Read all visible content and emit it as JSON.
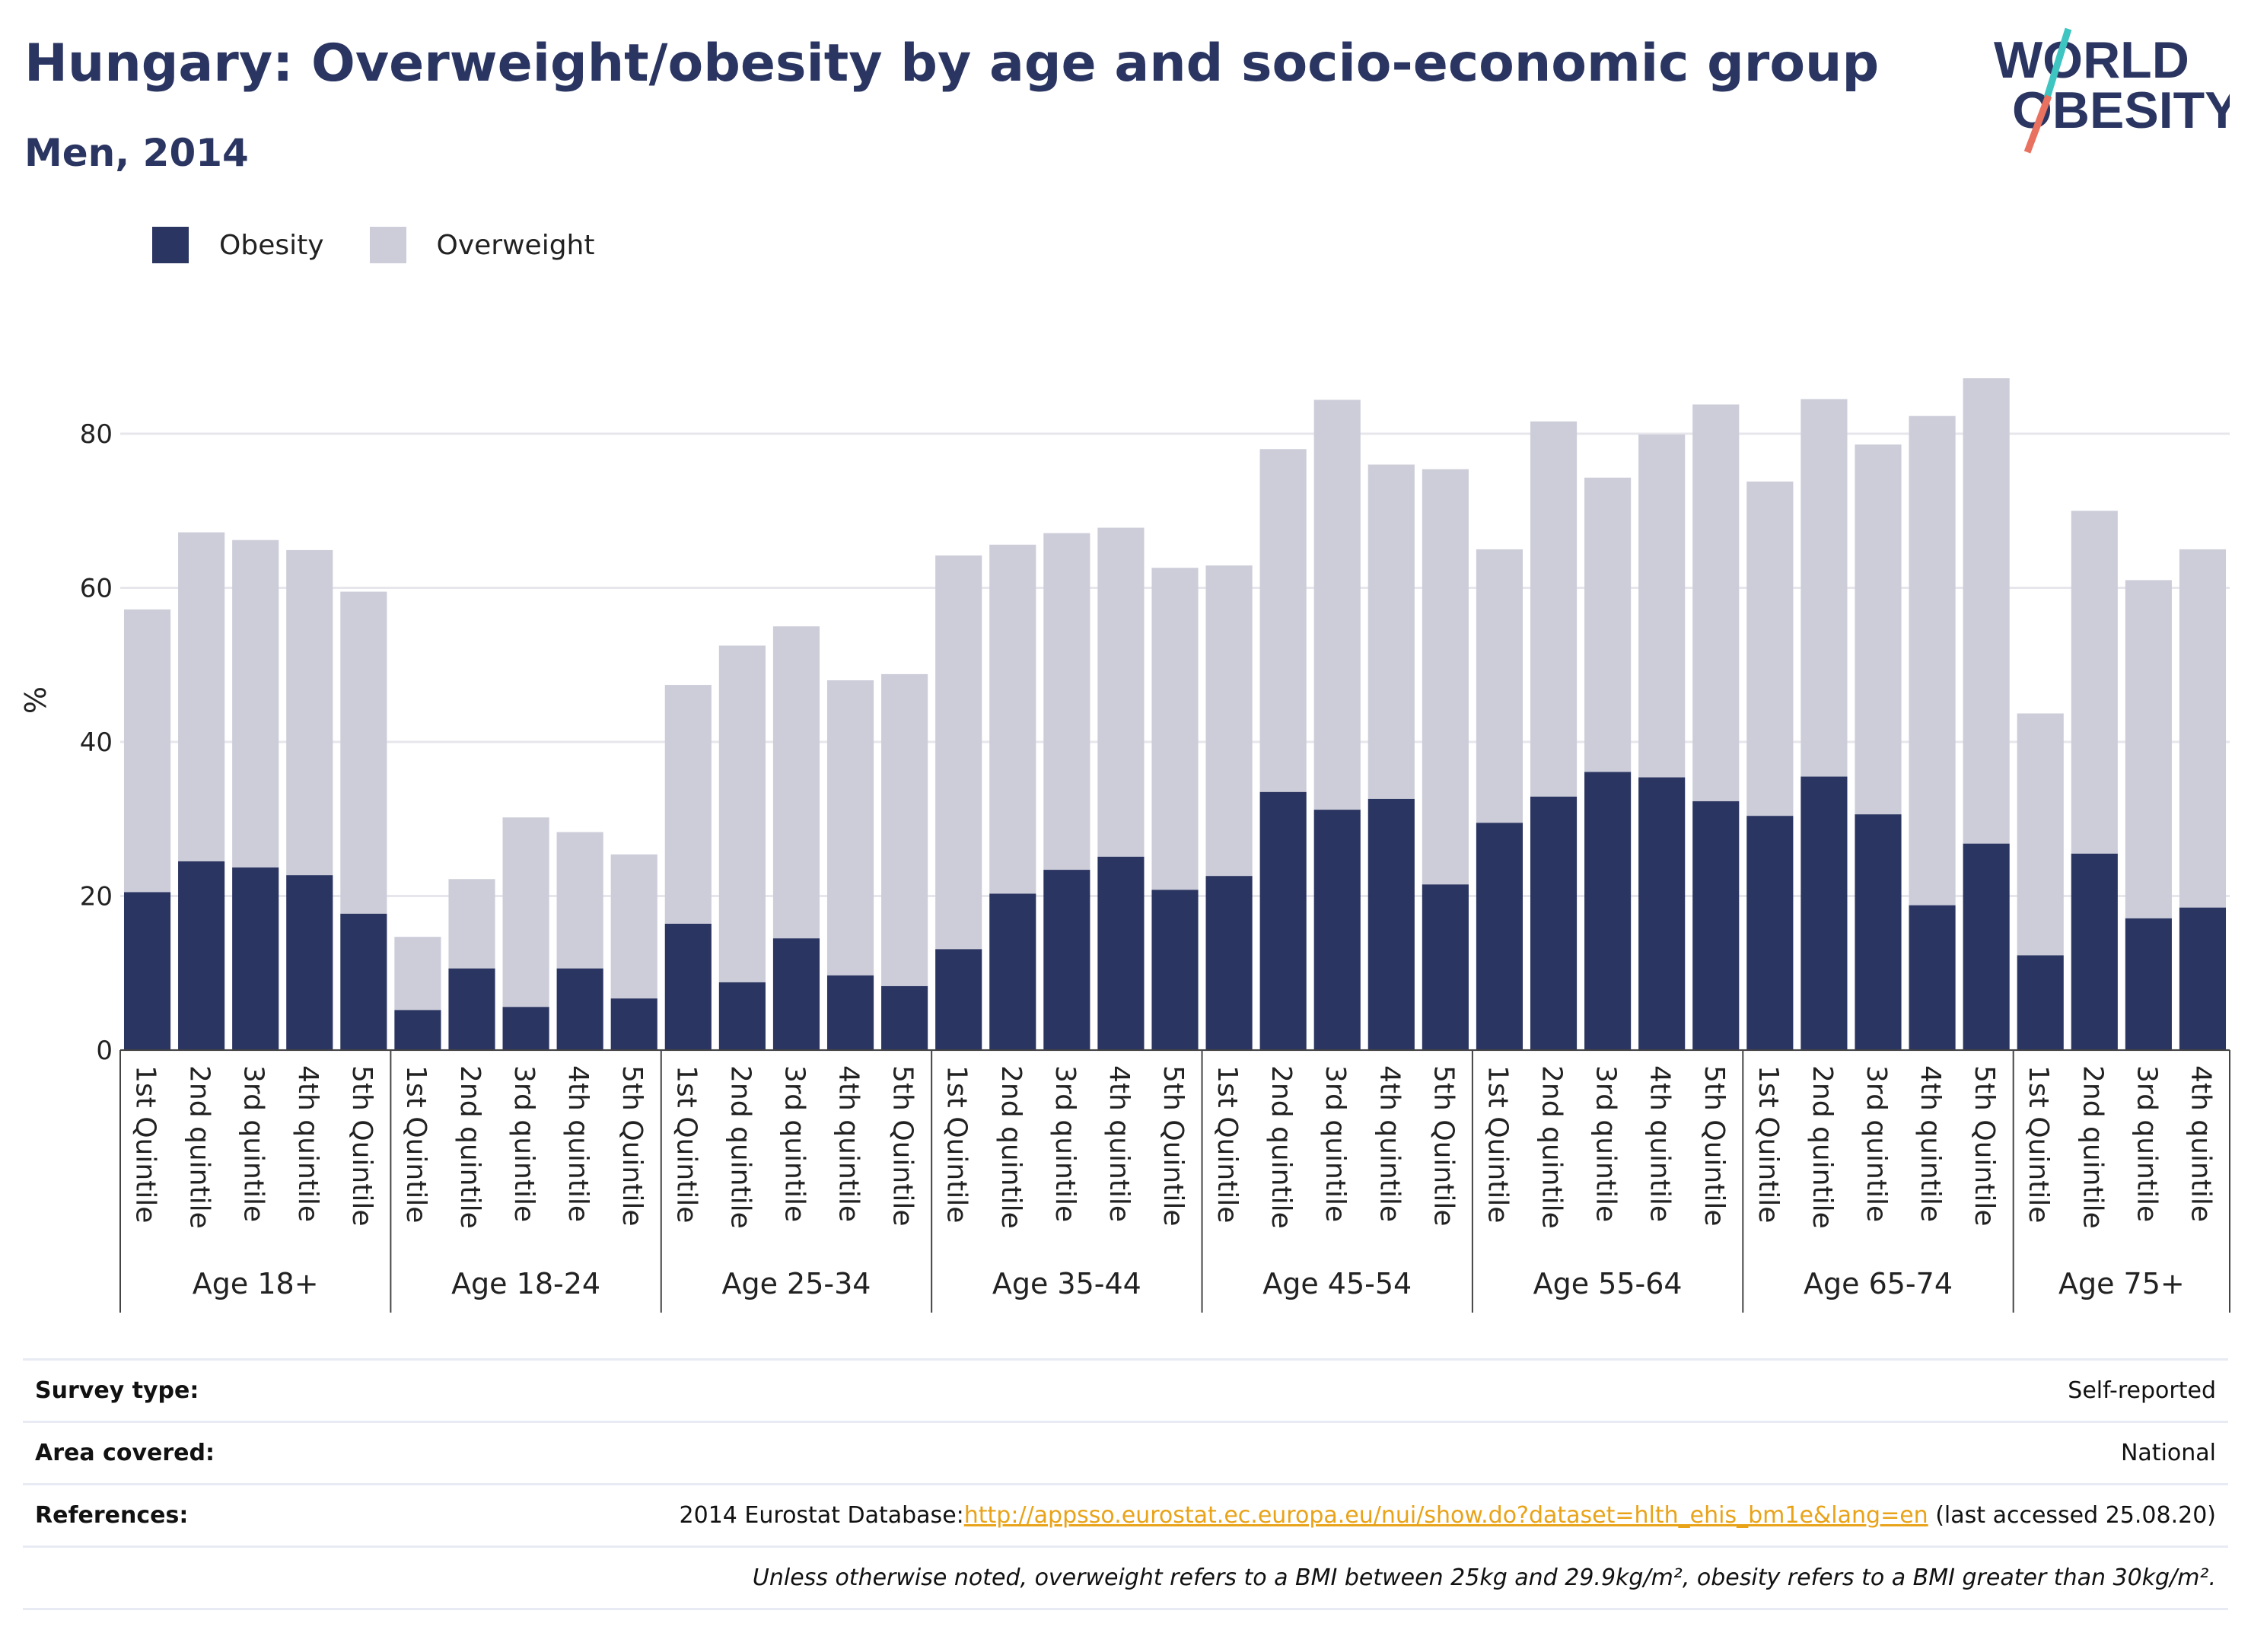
{
  "header": {
    "title": "Hungary: Overweight/obesity by age and socio-economic group",
    "subtitle": "Men, 2014"
  },
  "logo": {
    "line1": "WORLD",
    "line2": "OBESITY"
  },
  "colors": {
    "obesity": "#2b3561",
    "overweight": "#cccdd9",
    "accent_teal": "#3ec5c1",
    "accent_coral": "#e8715f",
    "link": "#e8a319"
  },
  "legend": [
    {
      "label": "Obesity",
      "color": "#2b3561"
    },
    {
      "label": "Overweight",
      "color": "#cccdd9"
    }
  ],
  "chart_data": {
    "type": "bar",
    "stacked": true,
    "ylabel": "%",
    "ylim": [
      0,
      90
    ],
    "yticks": [
      0,
      20,
      40,
      60,
      80
    ],
    "grid": true,
    "legend_position": "top-left",
    "groups": [
      {
        "name": "Age 18+",
        "categories": [
          "1st Quintile",
          "2nd quintile",
          "3rd quintile",
          "4th quintile",
          "5th Quintile"
        ],
        "obesity": [
          20.5,
          24.5,
          23.7,
          22.7,
          17.7
        ],
        "total": [
          57.2,
          67.2,
          66.2,
          64.9,
          59.5
        ]
      },
      {
        "name": "Age 18-24",
        "categories": [
          "1st Quintile",
          "2nd quintile",
          "3rd quintile",
          "4th quintile",
          "5th Quintile"
        ],
        "obesity": [
          5.2,
          10.6,
          5.6,
          10.6,
          6.7
        ],
        "total": [
          14.7,
          22.2,
          30.2,
          28.3,
          25.4
        ]
      },
      {
        "name": "Age 25-34",
        "categories": [
          "1st Quintile",
          "2nd quintile",
          "3rd quintile",
          "4th quintile",
          "5th Quintile"
        ],
        "obesity": [
          16.4,
          8.8,
          14.5,
          9.7,
          8.3
        ],
        "total": [
          47.4,
          52.5,
          55.0,
          48.0,
          48.8
        ]
      },
      {
        "name": "Age 35-44",
        "categories": [
          "1st Quintile",
          "2nd quintile",
          "3rd quintile",
          "4th quintile",
          "5th Quintile"
        ],
        "obesity": [
          13.1,
          20.3,
          23.4,
          25.1,
          20.8
        ],
        "total": [
          64.2,
          65.6,
          67.1,
          67.8,
          62.6
        ]
      },
      {
        "name": "Age 45-54",
        "categories": [
          "1st Quintile",
          "2nd quintile",
          "3rd quintile",
          "4th quintile",
          "5th Quintile"
        ],
        "obesity": [
          22.6,
          33.5,
          31.2,
          32.6,
          21.5
        ],
        "total": [
          62.9,
          78.0,
          84.4,
          76.0,
          75.4
        ]
      },
      {
        "name": "Age 55-64",
        "categories": [
          "1st Quintile",
          "2nd quintile",
          "3rd quintile",
          "4th quintile",
          "5th Quintile"
        ],
        "obesity": [
          29.5,
          32.9,
          36.1,
          35.4,
          32.3
        ],
        "total": [
          65.0,
          81.6,
          74.3,
          79.9,
          83.8
        ]
      },
      {
        "name": "Age 65-74",
        "categories": [
          "1st Quintile",
          "2nd quintile",
          "3rd quintile",
          "4th quintile",
          "5th Quintile"
        ],
        "obesity": [
          30.4,
          35.5,
          30.6,
          18.8,
          26.8
        ],
        "total": [
          73.8,
          84.5,
          78.6,
          82.3,
          87.2
        ]
      },
      {
        "name": "Age 75+",
        "categories": [
          "1st Quintile",
          "2nd quintile",
          "3rd quintile",
          "4th quintile"
        ],
        "obesity": [
          12.3,
          25.5,
          17.1,
          18.5
        ],
        "total": [
          43.7,
          70.0,
          61.0,
          65.0
        ]
      }
    ]
  },
  "footer": {
    "survey_type_label": "Survey type:",
    "survey_type_value": "Self-reported",
    "area_label": "Area covered:",
    "area_value": "National",
    "references_label": "References:",
    "references_prefix": "2014 Eurostat Database:",
    "references_link": "http://appsso.eurostat.ec.europa.eu/nui/show.do?dataset=hlth_ehis_bm1e&lang=en",
    "references_suffix": " (last accessed 25.08.20)",
    "note": "Unless otherwise noted, overweight refers to a BMI between 25kg and 29.9kg/m², obesity refers to a BMI greater than 30kg/m²."
  }
}
